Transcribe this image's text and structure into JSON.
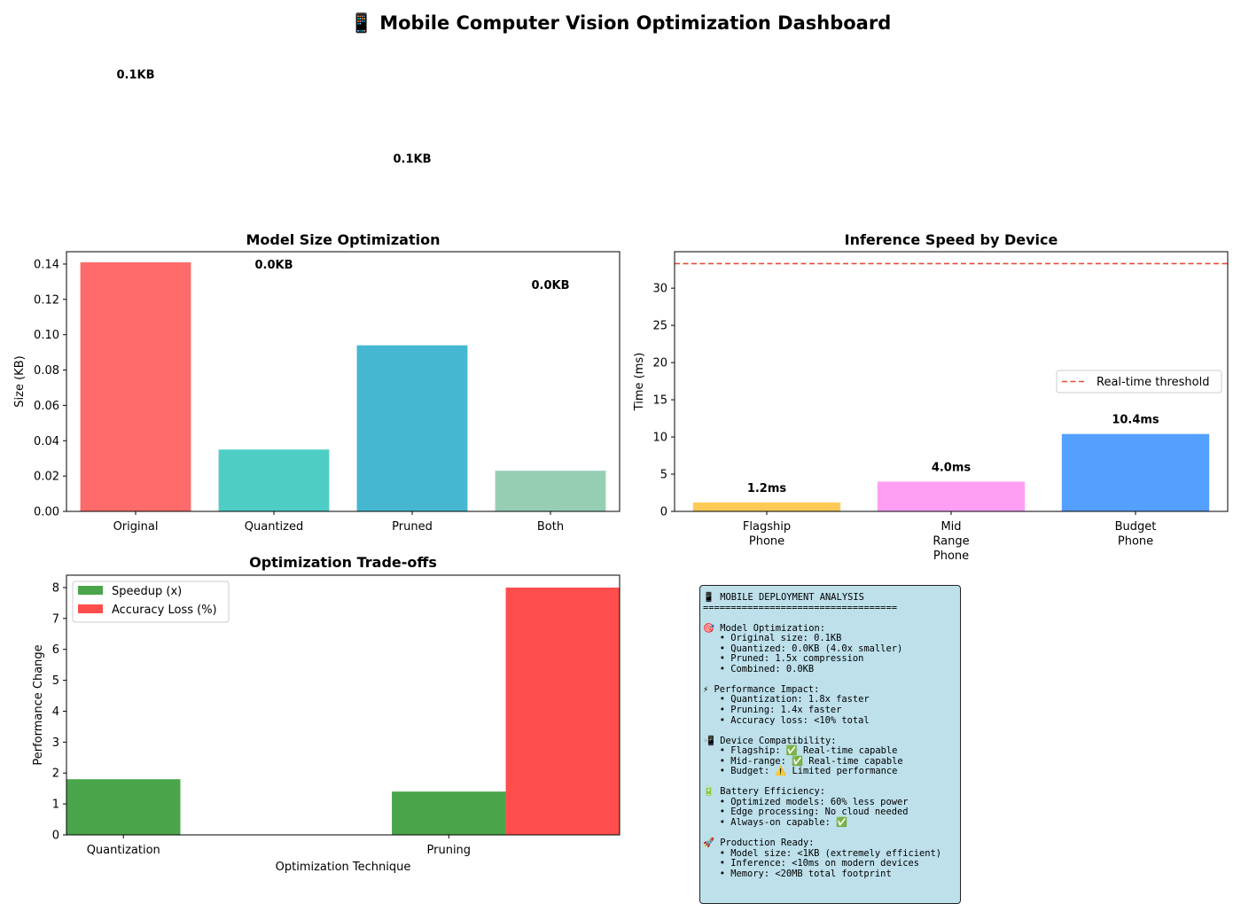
{
  "page": {
    "title": "📱 Mobile Computer Vision Optimization Dashboard"
  },
  "colors": {
    "original": "#ff6b6b",
    "quantized": "#4ecdc4",
    "pruned": "#45b7d1",
    "both": "#96ceb4",
    "flagship": "#feca57",
    "midrange": "#ff9ff3",
    "budget": "#54a0ff",
    "speedup": "#4aa54a",
    "accuracy_loss": "#ff4d4d",
    "threshold": "#e74c3c",
    "analysis_bg": "#add8e6"
  },
  "chart_data": [
    {
      "type": "bar",
      "title": "Model Size Optimization",
      "ylabel": "Size (KB)",
      "xlabel": "",
      "categories": [
        "Original",
        "Quantized",
        "Pruned",
        "Both"
      ],
      "values": [
        0.141,
        0.035,
        0.094,
        0.023
      ],
      "data_labels": [
        "0.1KB",
        "0.0KB",
        "0.1KB",
        "0.0KB"
      ],
      "label_values": [
        0.2475,
        0.14,
        0.2,
        0.1285
      ],
      "ylim": [
        0,
        0.147
      ],
      "yticks": [
        0.0,
        0.02,
        0.04,
        0.06,
        0.08,
        0.1,
        0.12,
        0.14
      ],
      "ytick_labels": [
        "0.00",
        "0.02",
        "0.04",
        "0.06",
        "0.08",
        "0.10",
        "0.12",
        "0.14"
      ],
      "grid": false
    },
    {
      "type": "bar",
      "title": "Inference Speed by Device",
      "ylabel": "Time (ms)",
      "xlabel": "",
      "categories": [
        "Flagship\nPhone",
        "Mid\nRange\nPhone",
        "Budget\nPhone"
      ],
      "values": [
        1.2,
        4.0,
        10.4
      ],
      "data_labels": [
        "1.2ms",
        "4.0ms",
        "10.4ms"
      ],
      "ylim": [
        0,
        34.9
      ],
      "yticks": [
        0,
        5,
        10,
        15,
        20,
        25,
        30
      ],
      "reference_line": {
        "value": 33.3,
        "label": "Real-time threshold"
      },
      "legend": "center-right",
      "grid": false
    },
    {
      "type": "bar",
      "title": "Optimization Trade-offs",
      "xlabel": "Optimization Technique",
      "ylabel": "Performance Change",
      "categories": [
        "Quantization",
        "Pruning"
      ],
      "series": [
        {
          "name": "Speedup (x)",
          "values": [
            1.8,
            1.4
          ]
        },
        {
          "name": "Accuracy Loss (%)",
          "values": [
            0.0,
            8.0
          ]
        }
      ],
      "ylim": [
        0,
        8.4
      ],
      "yticks": [
        0,
        1,
        2,
        3,
        4,
        5,
        6,
        7,
        8
      ],
      "legend": "top-left",
      "grid": false
    }
  ],
  "analysis": {
    "lines": [
      "📱 MOBILE DEPLOYMENT ANALYSIS",
      "===================================",
      "",
      "🎯 Model Optimization:",
      "   • Original size: 0.1KB",
      "   • Quantized: 0.0KB (4.0x smaller)",
      "   • Pruned: 1.5x compression",
      "   • Combined: 0.0KB",
      "",
      "⚡ Performance Impact:",
      "   • Quantization: 1.8x faster",
      "   • Pruning: 1.4x faster",
      "   • Accuracy loss: <10% total",
      "",
      "📲 Device Compatibility:",
      "   • Flagship: ✅ Real-time capable",
      "   • Mid-range: ✅ Real-time capable",
      "   • Budget: ⚠️ Limited performance",
      "",
      "🔋 Battery Efficiency:",
      "   • Optimized models: 60% less power",
      "   • Edge processing: No cloud needed",
      "   • Always-on capable: ✅",
      "",
      "🚀 Production Ready:",
      "   • Model size: <1KB (extremely efficient)",
      "   • Inference: <10ms on modern devices",
      "   • Memory: <20MB total footprint"
    ]
  }
}
